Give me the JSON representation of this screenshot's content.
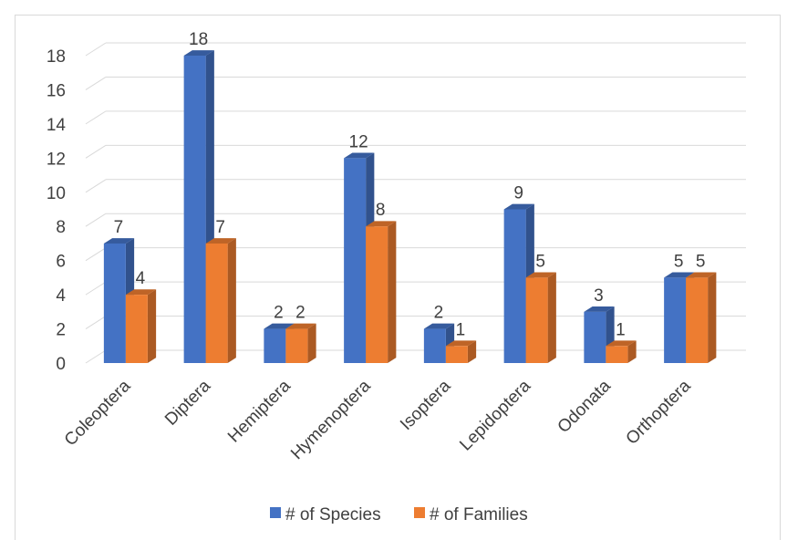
{
  "chart_data": {
    "type": "bar",
    "three_d": true,
    "categories": [
      "Coleoptera",
      "Diptera",
      "Hemiptera",
      "Hymenoptera",
      "Isoptera",
      "Lepidoptera",
      "Odonata",
      "Orthoptera"
    ],
    "series": [
      {
        "name": "# of Species",
        "values": [
          7,
          18,
          2,
          12,
          2,
          9,
          3,
          5
        ],
        "color": "#4472C4"
      },
      {
        "name": "# of Families",
        "values": [
          4,
          7,
          2,
          8,
          1,
          5,
          1,
          5
        ],
        "color": "#ED7D31"
      }
    ],
    "ylim": [
      0,
      18
    ],
    "yticks": [
      0,
      2,
      4,
      6,
      8,
      10,
      12,
      14,
      16,
      18
    ],
    "grid": true,
    "legend": "bottom",
    "title": "",
    "xlabel": "",
    "ylabel": ""
  }
}
